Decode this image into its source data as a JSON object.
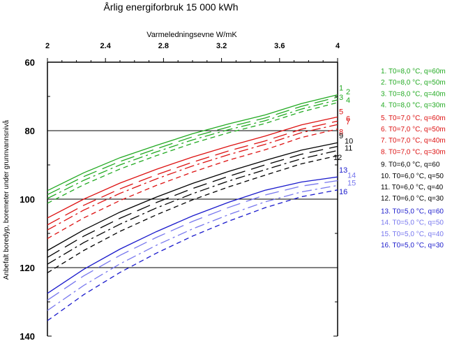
{
  "chart_data": {
    "type": "line",
    "title": "Årlig energiforbruk 15 000 kWh",
    "xlabel": "Varmeledningsevne W/mK",
    "ylabel": "Anbefalt boredyp, boremeter under grunnvannsnivå",
    "xlim": [
      2,
      4
    ],
    "ylim": [
      60,
      140
    ],
    "y_inverted": true,
    "x_axis_position": "top",
    "x_ticks": [
      "2",
      "2.4",
      "2.8",
      "3.2",
      "3.6",
      "4"
    ],
    "y_ticks": [
      "60",
      "80",
      "100",
      "120",
      "140"
    ],
    "gridlines_y": [
      80,
      100,
      120
    ],
    "x": [
      2.0,
      2.25,
      2.5,
      2.75,
      3.0,
      3.25,
      3.5,
      3.75,
      4.0
    ],
    "series": [
      {
        "name": "1. T0=8,0 °C, q=60m",
        "end_label": "1",
        "color": "#22aa22",
        "dash": "solid",
        "values": [
          97.5,
          92.3,
          87.9,
          84.3,
          80.9,
          78.0,
          75.4,
          72.1,
          69.5
        ]
      },
      {
        "name": "2. T0=8,0 °C, q=50m",
        "end_label": "2",
        "color": "#22aa22",
        "dash": "long",
        "values": [
          98.7,
          93.4,
          89.0,
          85.3,
          81.8,
          78.9,
          76.3,
          72.9,
          70.2
        ]
      },
      {
        "name": "3. T0=8,0 °C, q=40m",
        "end_label": "3",
        "color": "#22aa22",
        "dash": "dashdot",
        "values": [
          99.8,
          94.5,
          90.0,
          86.2,
          82.7,
          79.7,
          77.1,
          73.7,
          71.0
        ]
      },
      {
        "name": "4. T0=8,0 °C, q=30m",
        "end_label": "4",
        "color": "#22aa22",
        "dash": "short",
        "values": [
          101.2,
          95.8,
          91.2,
          87.3,
          83.7,
          80.6,
          77.9,
          74.5,
          71.8
        ]
      },
      {
        "name": "5. T0=7,0 °C, q=60m",
        "end_label": "5",
        "color": "#dd1111",
        "dash": "solid",
        "values": [
          105.5,
          100.0,
          95.3,
          91.3,
          87.7,
          84.5,
          81.6,
          78.3,
          76.0
        ]
      },
      {
        "name": "6. T0=7,0 °C, q=50m",
        "end_label": "6",
        "color": "#dd1111",
        "dash": "long",
        "values": [
          107.5,
          101.8,
          97.0,
          92.9,
          89.2,
          85.9,
          83.0,
          79.6,
          77.2
        ]
      },
      {
        "name": "7. T0=7,0 °C, q=40m",
        "end_label": "7",
        "color": "#dd1111",
        "dash": "dashdot",
        "values": [
          109.0,
          103.2,
          98.3,
          94.1,
          90.3,
          87.0,
          84.0,
          80.6,
          78.2
        ]
      },
      {
        "name": "8. T0=7,0 °C, q=30m",
        "end_label": "8",
        "color": "#dd1111",
        "dash": "short",
        "values": [
          111.5,
          105.5,
          100.4,
          96.0,
          92.1,
          88.6,
          85.6,
          82.0,
          79.5
        ]
      },
      {
        "name": "9. T0=6,0 °C, q=60",
        "end_label": "9",
        "color": "#000000",
        "dash": "solid",
        "values": [
          115.0,
          109.0,
          103.8,
          99.4,
          95.4,
          91.9,
          88.7,
          85.7,
          83.5
        ]
      },
      {
        "name": "10. T0=6,0 °C, q=50",
        "end_label": "10",
        "color": "#000000",
        "dash": "long",
        "values": [
          117.0,
          110.8,
          105.6,
          101.0,
          96.9,
          93.3,
          90.0,
          86.9,
          84.6
        ]
      },
      {
        "name": "11. T0=6,0 °C, q=40",
        "end_label": "11",
        "color": "#000000",
        "dash": "dashdot",
        "values": [
          119.0,
          112.7,
          107.3,
          102.6,
          98.4,
          94.7,
          91.4,
          88.2,
          85.8
        ]
      },
      {
        "name": "12. T0=6,0 °C, q=30",
        "end_label": "12",
        "color": "#000000",
        "dash": "short",
        "values": [
          121.5,
          115.0,
          109.4,
          104.6,
          100.2,
          96.4,
          93.0,
          89.7,
          87.3
        ]
      },
      {
        "name": "13. T0=5,0 °C, q=60",
        "end_label": "13",
        "color": "#1a1acc",
        "dash": "solid",
        "values": [
          127.5,
          120.5,
          114.6,
          109.5,
          104.9,
          100.9,
          97.4,
          95.0,
          93.5
        ]
      },
      {
        "name": "14. T0=5,0 °C, q=50",
        "end_label": "14",
        "color": "#7777ee",
        "dash": "long",
        "values": [
          129.5,
          122.4,
          116.4,
          111.2,
          106.5,
          102.4,
          98.8,
          96.2,
          94.6
        ]
      },
      {
        "name": "15. T0=5,0 °C, q=40",
        "end_label": "15",
        "color": "#7777ee",
        "dash": "dashdot",
        "values": [
          132.5,
          125.2,
          118.9,
          113.5,
          108.7,
          104.5,
          100.8,
          97.9,
          96.0
        ]
      },
      {
        "name": "16. T0=5,0 °C, q=30",
        "end_label": "16",
        "color": "#1a1acc",
        "dash": "short",
        "values": [
          135.5,
          127.9,
          121.4,
          115.8,
          110.8,
          106.4,
          102.5,
          99.3,
          97.3
        ]
      }
    ],
    "legend_position": "right"
  }
}
